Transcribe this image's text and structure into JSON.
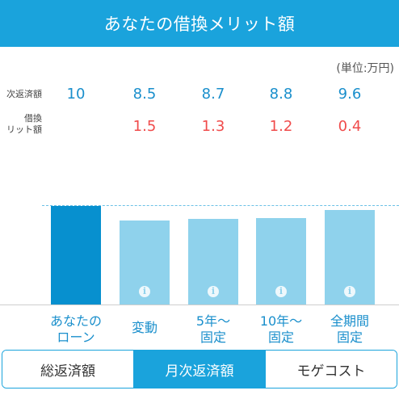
{
  "header": {
    "title": "あなたの借換メリット額"
  },
  "unit_label": "(単位:万円)",
  "row_labels": {
    "monthly": "次返済額",
    "merit_line1": "借換",
    "merit_line2": "リット額"
  },
  "columns": [
    {
      "label_line1": "あなたの",
      "label_line2": "ローン",
      "monthly": "10",
      "merit": ""
    },
    {
      "label_line1": "変動",
      "label_line2": "",
      "monthly": "8.5",
      "merit": "1.5"
    },
    {
      "label_line1": "5年〜",
      "label_line2": "固定",
      "monthly": "8.7",
      "merit": "1.3"
    },
    {
      "label_line1": "10年〜",
      "label_line2": "固定",
      "monthly": "8.8",
      "merit": "1.2"
    },
    {
      "label_line1": "全期間",
      "label_line2": "固定",
      "monthly": "9.6",
      "merit": "0.4"
    }
  ],
  "chart_data": {
    "type": "bar",
    "categories": [
      "あなたのローン",
      "変動",
      "5年〜固定",
      "10年〜固定",
      "全期間固定"
    ],
    "values": [
      10,
      8.5,
      8.7,
      8.8,
      9.6
    ],
    "reference_line": 10,
    "ylim": [
      0,
      11
    ],
    "colors": {
      "own_loan": "#0790cf",
      "others": "#8fd2ec",
      "reference": "#6cc1e6"
    }
  },
  "tabs": [
    {
      "label": "総返済額",
      "active": false
    },
    {
      "label": "月次返済額",
      "active": true
    },
    {
      "label": "モゲコスト",
      "active": false
    }
  ],
  "colors": {
    "accent": "#1aa3dc",
    "value_blue": "#1a8fcc",
    "merit_red": "#f04b4b"
  }
}
